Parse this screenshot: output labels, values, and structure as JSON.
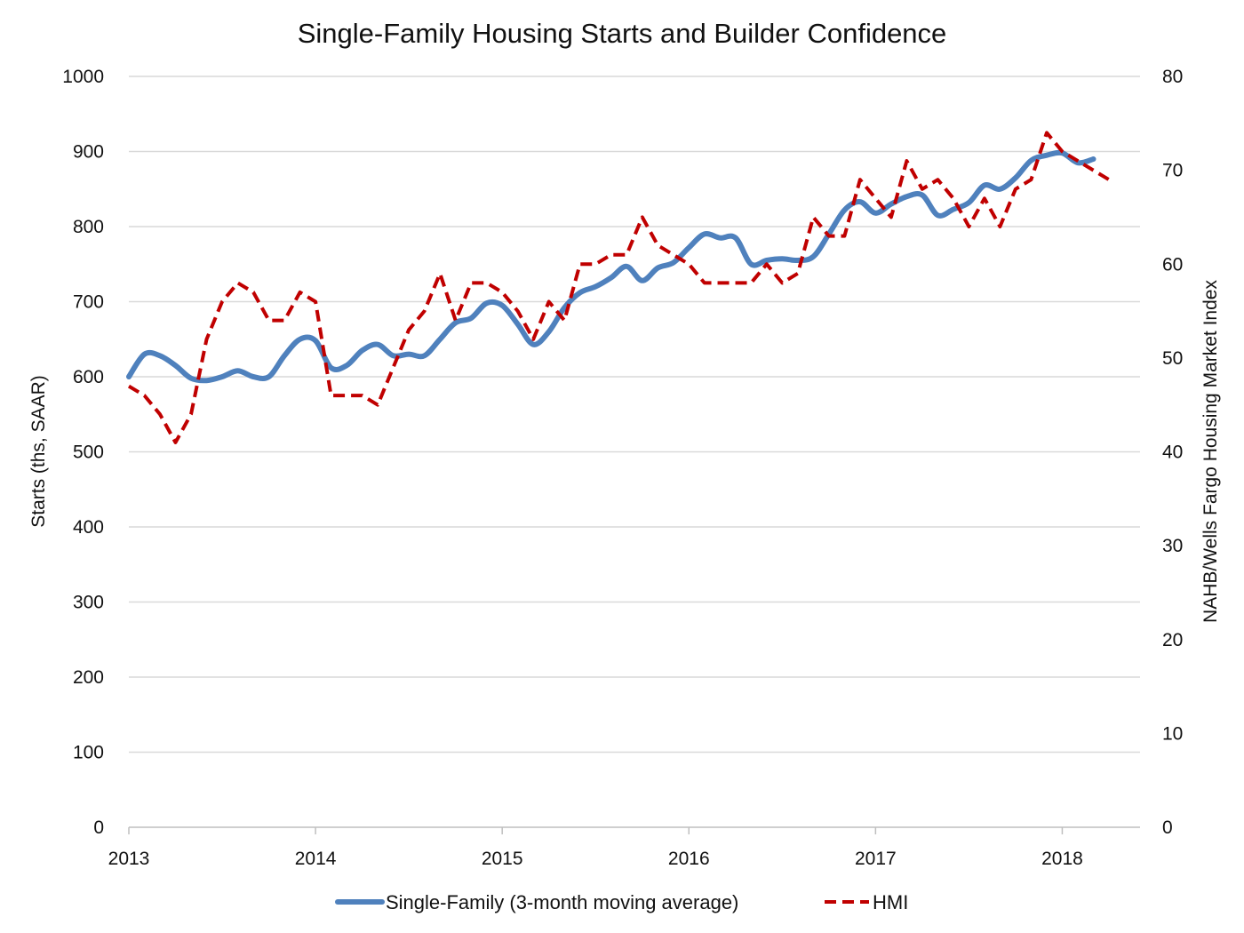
{
  "chart_data": {
    "type": "line",
    "title": "Single-Family Housing Starts and Builder Confidence",
    "ylabel": "Starts (ths, SAAR)",
    "y2label": "NAHB/Wells Fargo Housing Market Index",
    "xlabel": "",
    "x_ticks": [
      "2013",
      "2014",
      "2015",
      "2016",
      "2017",
      "2018"
    ],
    "xlim": [
      "2013-01",
      "2018-06"
    ],
    "ylim": [
      0,
      1000
    ],
    "y_ticks": [
      0,
      100,
      200,
      300,
      400,
      500,
      600,
      700,
      800,
      900,
      1000
    ],
    "y2lim": [
      0,
      80
    ],
    "y2_ticks": [
      0,
      10,
      20,
      30,
      40,
      50,
      60,
      70,
      80
    ],
    "grid": true,
    "legend_position": "bottom",
    "series": [
      {
        "name": "Single-Family (3-month moving average)",
        "axis": "left",
        "color": "#4f81bd",
        "style": "solid",
        "x": [
          "2013-01",
          "2013-02",
          "2013-03",
          "2013-04",
          "2013-05",
          "2013-06",
          "2013-07",
          "2013-08",
          "2013-09",
          "2013-10",
          "2013-11",
          "2013-12",
          "2014-01",
          "2014-02",
          "2014-03",
          "2014-04",
          "2014-05",
          "2014-06",
          "2014-07",
          "2014-08",
          "2014-09",
          "2014-10",
          "2014-11",
          "2014-12",
          "2015-01",
          "2015-02",
          "2015-03",
          "2015-04",
          "2015-05",
          "2015-06",
          "2015-07",
          "2015-08",
          "2015-09",
          "2015-10",
          "2015-11",
          "2015-12",
          "2016-01",
          "2016-02",
          "2016-03",
          "2016-04",
          "2016-05",
          "2016-06",
          "2016-07",
          "2016-08",
          "2016-09",
          "2016-10",
          "2016-11",
          "2016-12",
          "2017-01",
          "2017-02",
          "2017-03",
          "2017-04",
          "2017-05",
          "2017-06",
          "2017-07",
          "2017-08",
          "2017-09",
          "2017-10",
          "2017-11",
          "2017-12",
          "2018-01",
          "2018-02",
          "2018-03"
        ],
        "values": [
          600,
          630,
          628,
          615,
          598,
          595,
          600,
          608,
          600,
          600,
          628,
          650,
          648,
          612,
          615,
          635,
          643,
          628,
          630,
          628,
          650,
          672,
          678,
          698,
          695,
          670,
          643,
          660,
          692,
          712,
          720,
          732,
          747,
          728,
          745,
          752,
          772,
          790,
          785,
          785,
          750,
          755,
          757,
          755,
          760,
          790,
          822,
          833,
          818,
          830,
          840,
          842,
          815,
          823,
          832,
          855,
          850,
          865,
          888,
          895,
          898,
          885,
          890
        ]
      },
      {
        "name": "HMI",
        "axis": "right",
        "color": "#c00000",
        "style": "dashed",
        "x": [
          "2013-01",
          "2013-02",
          "2013-03",
          "2013-04",
          "2013-05",
          "2013-06",
          "2013-07",
          "2013-08",
          "2013-09",
          "2013-10",
          "2013-11",
          "2013-12",
          "2014-01",
          "2014-02",
          "2014-03",
          "2014-04",
          "2014-05",
          "2014-06",
          "2014-07",
          "2014-08",
          "2014-09",
          "2014-10",
          "2014-11",
          "2014-12",
          "2015-01",
          "2015-02",
          "2015-03",
          "2015-04",
          "2015-05",
          "2015-06",
          "2015-07",
          "2015-08",
          "2015-09",
          "2015-10",
          "2015-11",
          "2015-12",
          "2016-01",
          "2016-02",
          "2016-03",
          "2016-04",
          "2016-05",
          "2016-06",
          "2016-07",
          "2016-08",
          "2016-09",
          "2016-10",
          "2016-11",
          "2016-12",
          "2017-01",
          "2017-02",
          "2017-03",
          "2017-04",
          "2017-05",
          "2017-06",
          "2017-07",
          "2017-08",
          "2017-09",
          "2017-10",
          "2017-11",
          "2017-12",
          "2018-01",
          "2018-02",
          "2018-03",
          "2018-04"
        ],
        "values": [
          47,
          46,
          44,
          41,
          44,
          52,
          56,
          58,
          57,
          54,
          54,
          57,
          56,
          46,
          46,
          46,
          45,
          49,
          53,
          55,
          59,
          54,
          58,
          58,
          57,
          55,
          52,
          56,
          54,
          60,
          60,
          61,
          61,
          65,
          62,
          61,
          60,
          58,
          58,
          58,
          58,
          60,
          58,
          59,
          65,
          63,
          63,
          69,
          67,
          65,
          71,
          68,
          69,
          67,
          64,
          67,
          64,
          68,
          69,
          74,
          72,
          71,
          70,
          69
        ]
      }
    ]
  }
}
